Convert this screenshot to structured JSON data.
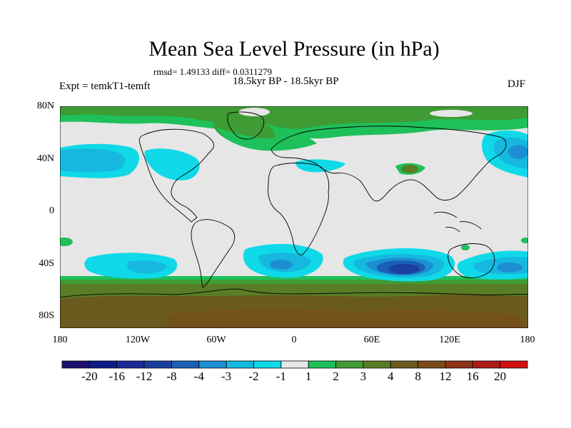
{
  "title": "Mean Sea Level Pressure (in hPa)",
  "stats": "rmsd= 1.49133 diff= 0.0311279",
  "period": "18.5kyr BP - 18.5kyr BP",
  "experiment": "Expt = temkT1-temft",
  "season": "DJF",
  "lat_labels": [
    "80N",
    "40N",
    "0",
    "40S",
    "80S"
  ],
  "lon_labels": [
    "180",
    "120W",
    "60W",
    "0",
    "60E",
    "120E",
    "180"
  ],
  "colors": {
    "neutral": "#e6e6e6",
    "cyan_light": "#0fd9e8",
    "cyan": "#16b8df",
    "blue_mid": "#1d8ed2",
    "blue": "#1a60b7",
    "blue_dark": "#1a3f9e",
    "green": "#1ec05a",
    "green_mid": "#3f9b33",
    "olive": "#597d26",
    "brown": "#6b5a1e",
    "brown_dark": "#7c4a1a"
  },
  "colorbar": {
    "colors": [
      "#1e1270",
      "#0e1a86",
      "#1a2a98",
      "#1a3f9e",
      "#1a60b7",
      "#1d8ed2",
      "#16b8df",
      "#0fd9e8",
      "#e6e6e6",
      "#1ec05a",
      "#3f9b33",
      "#597d26",
      "#6b5a1e",
      "#7c4a1a",
      "#8f3219",
      "#ae1b17",
      "#d01010"
    ],
    "labels": [
      "-20",
      "-16",
      "-12",
      "-8",
      "-4",
      "-3",
      "-2",
      "-1",
      "1",
      "2",
      "3",
      "4",
      "8",
      "12",
      "16",
      "20"
    ]
  }
}
